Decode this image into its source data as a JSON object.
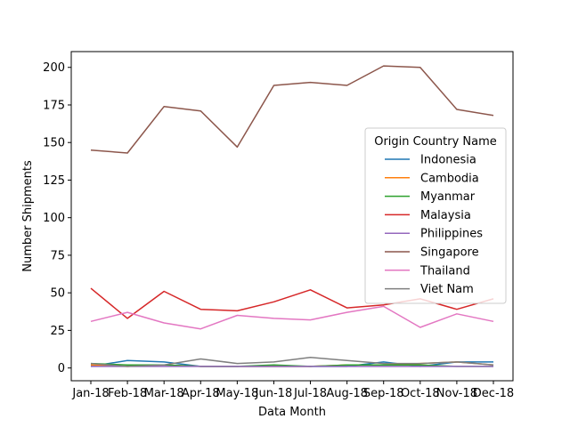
{
  "chart_data": {
    "type": "line",
    "xlabel": "Data Month",
    "ylabel": "Number Shipments",
    "ylim": [
      -8.5,
      210.5
    ],
    "yticks": [
      0,
      25,
      50,
      75,
      100,
      125,
      150,
      175,
      200
    ],
    "categories": [
      "Jan-18",
      "Feb-18",
      "Mar-18",
      "Apr-18",
      "May-18",
      "Jun-18",
      "Jul-18",
      "Aug-18",
      "Sep-18",
      "Oct-18",
      "Nov-18",
      "Dec-18"
    ],
    "legend": {
      "title": "Origin Country Name",
      "position": "center-right"
    },
    "grid": false,
    "series": [
      {
        "name": "Indonesia",
        "color": "#1f77b4",
        "values": [
          1,
          5,
          4,
          1,
          1,
          1,
          1,
          1,
          4,
          1,
          4,
          4
        ]
      },
      {
        "name": "Cambodia",
        "color": "#ff7f0e",
        "values": [
          2,
          1,
          2,
          1,
          1,
          1,
          1,
          2,
          2,
          3,
          4,
          2
        ]
      },
      {
        "name": "Myanmar",
        "color": "#2ca02c",
        "values": [
          3,
          2,
          2,
          1,
          1,
          2,
          1,
          2,
          2,
          2,
          1,
          1
        ]
      },
      {
        "name": "Malaysia",
        "color": "#d62728",
        "values": [
          53,
          33,
          51,
          39,
          38,
          44,
          52,
          40,
          42,
          46,
          39,
          46
        ]
      },
      {
        "name": "Philippines",
        "color": "#9467bd",
        "values": [
          1,
          1,
          1,
          1,
          1,
          1,
          1,
          1,
          1,
          1,
          1,
          1
        ]
      },
      {
        "name": "Singapore",
        "color": "#8c564b",
        "values": [
          145,
          143,
          174,
          171,
          147,
          188,
          190,
          188,
          201,
          200,
          172,
          168
        ]
      },
      {
        "name": "Thailand",
        "color": "#e377c2",
        "values": [
          31,
          37,
          30,
          26,
          35,
          33,
          32,
          37,
          41,
          27,
          36,
          31
        ]
      },
      {
        "name": "Viet Nam",
        "color": "#7f7f7f",
        "values": [
          3,
          1,
          2,
          6,
          3,
          4,
          7,
          5,
          3,
          3,
          4,
          2
        ]
      }
    ]
  }
}
